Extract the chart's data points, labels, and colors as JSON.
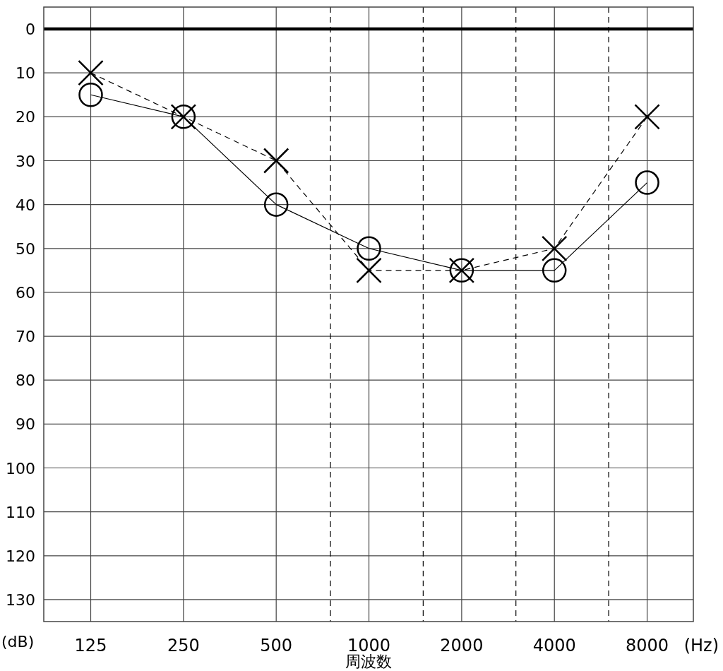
{
  "chart_data": {
    "type": "line",
    "xlabel": "周波数",
    "log": "x",
    "grid": true,
    "x": [
      125,
      250,
      500,
      1000,
      2000,
      4000,
      8000
    ],
    "xlim": [
      88,
      11300
    ],
    "xticks": [
      125,
      250,
      500,
      1000,
      2000,
      4000,
      8000
    ],
    "ylim": [
      135,
      -5
    ],
    "yticks": [
      0,
      10,
      20,
      30,
      40,
      50,
      60,
      70,
      80,
      90,
      100,
      110,
      120,
      130
    ],
    "series": [
      {
        "color": "#000000",
        "marker": "circle",
        "line_style": "solid",
        "values": [
          15,
          20,
          40,
          50,
          55,
          55,
          35
        ]
      },
      {
        "color": "#000000",
        "marker": "cross",
        "line_style": "dashed",
        "values": [
          10,
          20,
          30,
          55,
          55,
          50,
          20
        ]
      }
    ],
    "ref_lines": [
      {
        "axis": "y",
        "value": 0,
        "color": "#000000",
        "line_style": "solid"
      },
      {
        "axis": "x",
        "value": 750,
        "color": "#000000",
        "line_style": "dashed"
      },
      {
        "axis": "x",
        "value": 1500,
        "color": "#000000",
        "line_style": "dashed"
      },
      {
        "axis": "x",
        "value": 3000,
        "color": "#000000",
        "line_style": "dashed"
      },
      {
        "axis": "x",
        "value": 6000,
        "color": "#000000",
        "line_style": "dashed"
      }
    ],
    "annotations": [
      "(dB)",
      "(Hz)"
    ]
  }
}
